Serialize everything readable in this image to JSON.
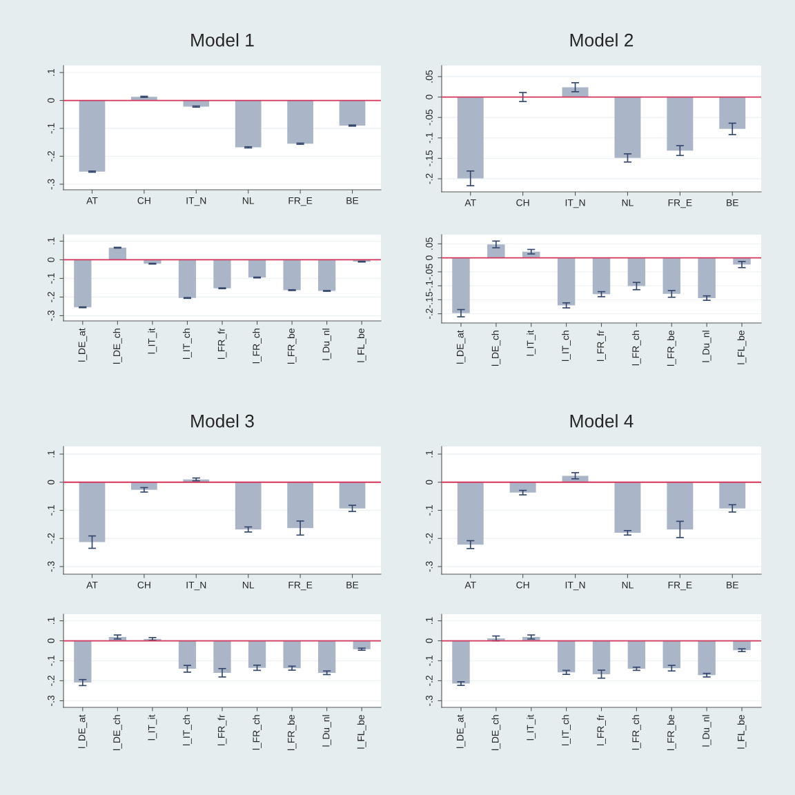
{
  "chart_data": [
    {
      "type": "bar",
      "title": "Model 1",
      "categories": [
        "AT",
        "CH",
        "IT_N",
        "NL",
        "FR_E",
        "BE"
      ],
      "values": [
        -0.255,
        0.013,
        -0.022,
        -0.168,
        -0.155,
        -0.09
      ],
      "errors": [
        0.002,
        0.002,
        0.002,
        0.002,
        0.002,
        0.002
      ],
      "color": "#aab6c8",
      "ylim": [
        -0.32,
        0.125
      ],
      "yticks": [
        {
          "value": 0.1,
          "label": ".1"
        },
        0,
        {
          "value": -0.1,
          "label": "-.1"
        },
        {
          "value": -0.2,
          "label": "-.2"
        },
        {
          "value": -0.3,
          "label": "-.3"
        }
      ],
      "grid": "y",
      "ref_lines": [
        {
          "axis": "y",
          "value": 0,
          "color": "#d6335a"
        }
      ]
    },
    {
      "type": "bar",
      "title": "Model 2",
      "categories": [
        "AT",
        "CH",
        "IT_N",
        "NL",
        "FR_E",
        "BE"
      ],
      "values": [
        -0.199,
        0.0,
        0.024,
        -0.149,
        -0.131,
        -0.078
      ],
      "errors": [
        0.018,
        0.011,
        0.011,
        0.01,
        0.012,
        0.014
      ],
      "color": "#aab6c8",
      "ylim": [
        -0.232,
        0.077
      ],
      "yticks": [
        {
          "value": 0.05,
          "label": ".05"
        },
        0,
        {
          "value": -0.05,
          "label": "-.05"
        },
        {
          "value": -0.1,
          "label": "-.1"
        },
        {
          "value": -0.15,
          "label": "-.15"
        },
        {
          "value": -0.2,
          "label": "-.2"
        }
      ],
      "grid": "y",
      "ref_lines": [
        {
          "axis": "y",
          "value": 0,
          "color": "#d6335a"
        }
      ]
    },
    {
      "type": "bar",
      "categories": [
        "l_DE_at",
        "l_DE_ch",
        "l_IT_it",
        "l_IT_ch",
        "l_FR_fr",
        "l_FR_ch",
        "l_FR_be",
        "l_Du_nl",
        "l_FL_be"
      ],
      "values": [
        -0.255,
        0.065,
        -0.021,
        -0.205,
        -0.153,
        -0.095,
        -0.163,
        -0.167,
        -0.01
      ],
      "errors": [
        0.002,
        0.002,
        0.002,
        0.002,
        0.002,
        0.002,
        0.002,
        0.002,
        0.002
      ],
      "color": "#aab6c8",
      "ylim": [
        -0.328,
        0.135
      ],
      "yticks": [
        {
          "value": 0.1,
          "label": ".1"
        },
        0,
        {
          "value": -0.1,
          "label": "-.1"
        },
        {
          "value": -0.2,
          "label": "-.2"
        },
        {
          "value": -0.3,
          "label": "-.3"
        }
      ],
      "grid": "y",
      "ref_lines": [
        {
          "axis": "y",
          "value": 0,
          "color": "#d6335a"
        }
      ]
    },
    {
      "type": "bar",
      "categories": [
        "l_DE_at",
        "l_DE_ch",
        "l_IT_it",
        "l_IT_ch",
        "l_FR_fr",
        "l_FR_ch",
        "l_FR_be",
        "l_Du_nl",
        "l_FL_be"
      ],
      "values": [
        -0.198,
        0.048,
        0.022,
        -0.17,
        -0.13,
        -0.101,
        -0.129,
        -0.144,
        -0.024
      ],
      "errors": [
        0.013,
        0.012,
        0.008,
        0.009,
        0.009,
        0.013,
        0.012,
        0.008,
        0.011
      ],
      "color": "#aab6c8",
      "ylim": [
        -0.233,
        0.083
      ],
      "yticks": [
        {
          "value": 0.05,
          "label": ".05"
        },
        0,
        {
          "value": -0.05,
          "label": "-.05"
        },
        {
          "value": -0.1,
          "label": "-.1"
        },
        {
          "value": -0.15,
          "label": "-.15"
        },
        {
          "value": -0.2,
          "label": "-.2"
        }
      ],
      "grid": "y",
      "ref_lines": [
        {
          "axis": "y",
          "value": 0,
          "color": "#d6335a"
        }
      ]
    },
    {
      "type": "bar",
      "title": "Model 3",
      "categories": [
        "AT",
        "CH",
        "IT_N",
        "NL",
        "FR_E",
        "BE"
      ],
      "values": [
        -0.213,
        -0.027,
        0.01,
        -0.168,
        -0.163,
        -0.093
      ],
      "errors": [
        0.022,
        0.008,
        0.005,
        0.009,
        0.025,
        0.011
      ],
      "color": "#aab6c8",
      "ylim": [
        -0.327,
        0.127
      ],
      "yticks": [
        {
          "value": 0.1,
          "label": ".1"
        },
        0,
        {
          "value": -0.1,
          "label": "-.1"
        },
        {
          "value": -0.2,
          "label": "-.2"
        },
        {
          "value": -0.3,
          "label": "-.3"
        }
      ],
      "grid": "y",
      "ref_lines": [
        {
          "axis": "y",
          "value": 0,
          "color": "#d6335a"
        }
      ]
    },
    {
      "type": "bar",
      "title": "Model 4",
      "categories": [
        "AT",
        "CH",
        "IT_N",
        "NL",
        "FR_E",
        "BE"
      ],
      "values": [
        -0.222,
        -0.037,
        0.023,
        -0.18,
        -0.168,
        -0.093
      ],
      "errors": [
        0.014,
        0.008,
        0.011,
        0.008,
        0.029,
        0.013
      ],
      "color": "#aab6c8",
      "ylim": [
        -0.327,
        0.127
      ],
      "yticks": [
        {
          "value": 0.1,
          "label": ".1"
        },
        0,
        {
          "value": -0.1,
          "label": "-.1"
        },
        {
          "value": -0.2,
          "label": "-.2"
        },
        {
          "value": -0.3,
          "label": "-.3"
        }
      ],
      "grid": "y",
      "ref_lines": [
        {
          "axis": "y",
          "value": 0,
          "color": "#d6335a"
        }
      ]
    },
    {
      "type": "bar",
      "categories": [
        "l_DE_at",
        "l_DE_ch",
        "l_IT_it",
        "l_IT_ch",
        "l_FR_fr",
        "l_FR_ch",
        "l_FR_be",
        "l_Du_nl",
        "l_FL_be"
      ],
      "values": [
        -0.209,
        0.019,
        0.009,
        -0.14,
        -0.16,
        -0.135,
        -0.137,
        -0.16,
        -0.042
      ],
      "errors": [
        0.015,
        0.01,
        0.007,
        0.017,
        0.021,
        0.013,
        0.01,
        0.009,
        0.005
      ],
      "color": "#aab6c8",
      "ylim": [
        -0.333,
        0.133
      ],
      "yticks": [
        {
          "value": 0.1,
          "label": ".1"
        },
        0,
        {
          "value": -0.1,
          "label": "-.1"
        },
        {
          "value": -0.2,
          "label": "-.2"
        },
        {
          "value": -0.3,
          "label": "-.3"
        }
      ],
      "grid": "y",
      "ref_lines": [
        {
          "axis": "y",
          "value": 0,
          "color": "#d6335a"
        }
      ]
    },
    {
      "type": "bar",
      "categories": [
        "l_DE_at",
        "l_DE_ch",
        "l_IT_it",
        "l_IT_ch",
        "l_FR_fr",
        "l_FR_ch",
        "l_FR_be",
        "l_Du_nl",
        "l_FL_be"
      ],
      "values": [
        -0.214,
        0.012,
        0.019,
        -0.158,
        -0.167,
        -0.14,
        -0.137,
        -0.172,
        -0.047
      ],
      "errors": [
        0.009,
        0.012,
        0.01,
        0.01,
        0.02,
        0.008,
        0.014,
        0.009,
        0.007
      ],
      "color": "#aab6c8",
      "ylim": [
        -0.333,
        0.133
      ],
      "yticks": [
        {
          "value": 0.1,
          "label": ".1"
        },
        0,
        {
          "value": -0.1,
          "label": "-.1"
        },
        {
          "value": -0.2,
          "label": "-.2"
        },
        {
          "value": -0.3,
          "label": "-.3"
        }
      ],
      "grid": "y",
      "ref_lines": [
        {
          "axis": "y",
          "value": 0,
          "color": "#d6335a"
        }
      ]
    }
  ]
}
